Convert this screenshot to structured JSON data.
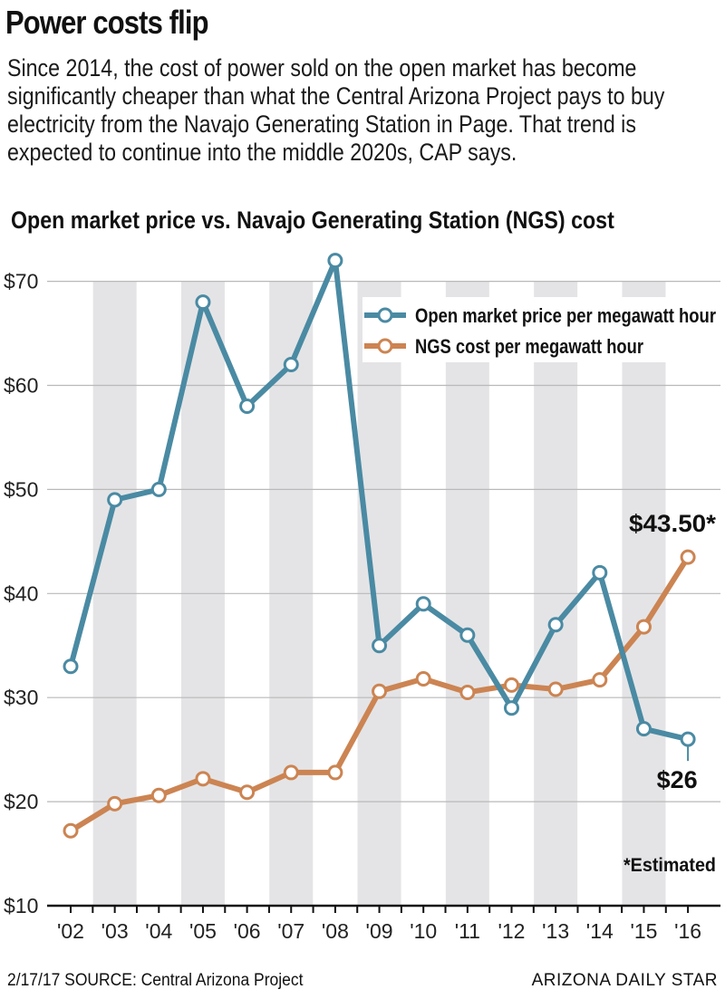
{
  "header": {
    "title": "Power costs flip",
    "description": "Since 2014, the cost of power sold on the open market has become significantly cheaper than what the Central Arizona Project pays to buy electricity from the Navajo Generating Station in Page. That trend is expected to continue into the middle 2020s, CAP says."
  },
  "footer": {
    "source": "2/17/17  SOURCE: Central Arizona Project",
    "publisher": "ARIZONA DAILY STAR"
  },
  "colors": {
    "open_market": "#4a8aa3",
    "ngs": "#cc8452",
    "band": "#e4e4e6",
    "grid": "#b9b9b9",
    "axis": "#111111"
  },
  "chart_data": {
    "type": "line",
    "title": "Open market price vs. Navajo Generating Station (NGS) cost",
    "categories": [
      "'02",
      "'03",
      "'04",
      "'05",
      "'06",
      "'07",
      "'08",
      "'09",
      "'10",
      "'11",
      "'12",
      "'13",
      "'14",
      "'15",
      "'16"
    ],
    "y_ticks": [
      10,
      20,
      30,
      40,
      50,
      60,
      70
    ],
    "y_tick_labels": [
      "$10",
      "$20",
      "$30",
      "$40",
      "$50",
      "$60",
      "$70"
    ],
    "ylim": [
      10,
      72
    ],
    "grid": true,
    "legend_position": "top-right",
    "series": [
      {
        "name": "Open market price per megawatt hour",
        "key": "open_market",
        "values": [
          33,
          49,
          50,
          68,
          58,
          62,
          72,
          35,
          39,
          36,
          29,
          37,
          42,
          27,
          26
        ]
      },
      {
        "name": "NGS cost per megawatt hour",
        "key": "ngs",
        "values": [
          17.2,
          19.8,
          20.6,
          22.2,
          20.9,
          22.8,
          22.8,
          30.6,
          31.8,
          30.5,
          31.2,
          30.8,
          31.7,
          36.8,
          43.5
        ]
      }
    ],
    "annotations": {
      "ngs_last": "$43.50*",
      "open_last": "$26",
      "footnote": "*Estimated"
    }
  }
}
